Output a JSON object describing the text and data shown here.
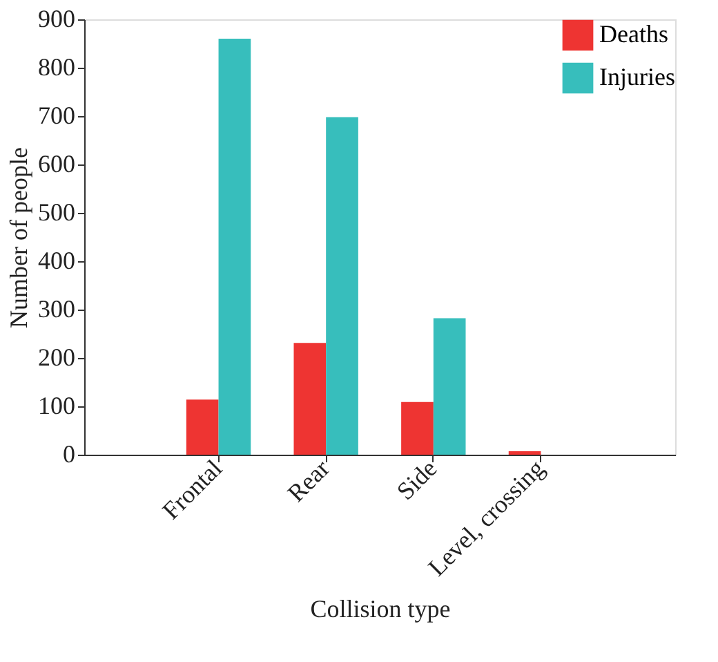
{
  "chart_data": {
    "type": "bar",
    "xlabel": "Collision type",
    "ylabel": "Number of people",
    "categories": [
      "Frontal",
      "Rear",
      "Side",
      "Level, crossing"
    ],
    "series": [
      {
        "name": "Deaths",
        "color": "#ee3432",
        "values": [
          114,
          231,
          109,
          7
        ]
      },
      {
        "name": "Injuries",
        "color": "#37bebc",
        "values": [
          860,
          698,
          282,
          0
        ]
      }
    ],
    "ylim": [
      0,
      900
    ],
    "yticks": [
      0,
      100,
      200,
      300,
      400,
      500,
      600,
      700,
      800,
      900
    ],
    "grid": false,
    "legend": "top right"
  }
}
